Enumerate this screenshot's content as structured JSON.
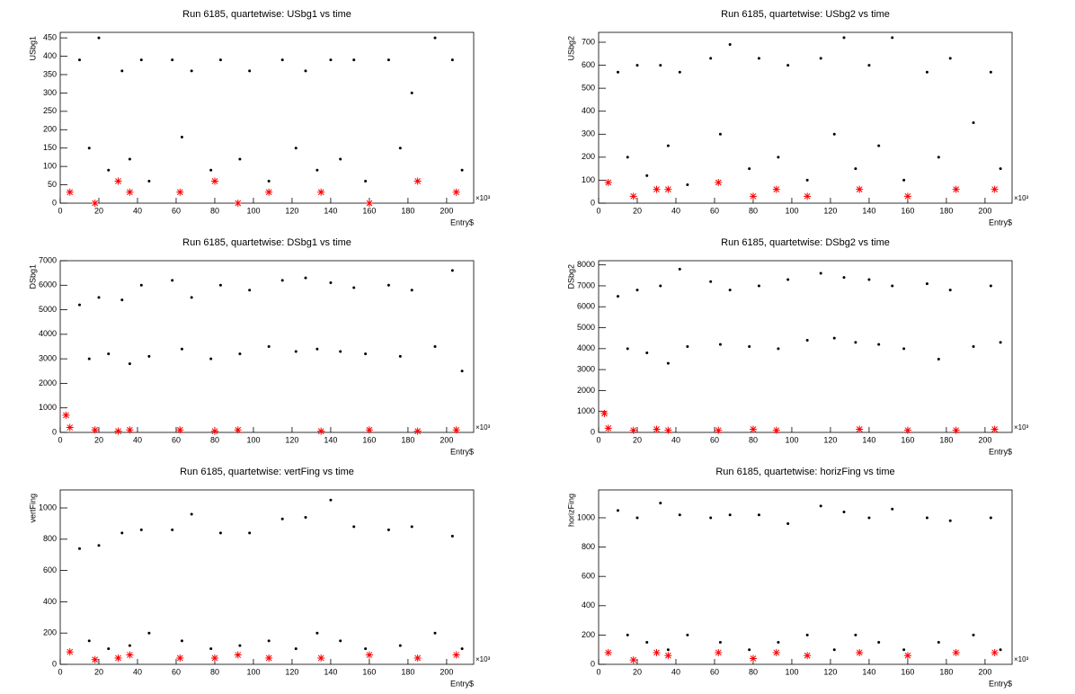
{
  "chart_data": [
    {
      "type": "scatter",
      "title": "Run 6185, quartetwise: USbg1 vs time",
      "y_label": "USbg1",
      "x_label": "Entry$",
      "x_exponent": "×10³",
      "xlim": [
        0,
        214
      ],
      "xticks": [
        0,
        20,
        40,
        60,
        80,
        100,
        120,
        140,
        160,
        180,
        200
      ],
      "ylim": [
        0,
        465
      ],
      "yticks": [
        0,
        50,
        100,
        150,
        200,
        250,
        300,
        350,
        400,
        450
      ],
      "series": [
        {
          "color": "#000000",
          "marker": "dot",
          "x": [
            10,
            15,
            20,
            25,
            32,
            36,
            42,
            46,
            58,
            63,
            68,
            78,
            83,
            93,
            98,
            108,
            115,
            122,
            127,
            133,
            140,
            145,
            152,
            158,
            170,
            176,
            182,
            194,
            203,
            208
          ],
          "values": [
            390,
            150,
            450,
            90,
            360,
            120,
            390,
            60,
            390,
            180,
            360,
            90,
            390,
            120,
            360,
            60,
            390,
            150,
            360,
            90,
            390,
            120,
            390,
            60,
            390,
            150,
            300,
            450,
            390,
            90
          ]
        },
        {
          "color": "#ff0000",
          "marker": "star",
          "x": [
            5,
            18,
            30,
            36,
            62,
            80,
            92,
            108,
            135,
            160,
            185,
            205
          ],
          "values": [
            30,
            0,
            60,
            30,
            30,
            60,
            0,
            30,
            30,
            0,
            60,
            30
          ]
        }
      ]
    },
    {
      "type": "scatter",
      "title": "Run 6185, quartetwise: USbg2 vs time",
      "y_label": "USbg2",
      "x_label": "Entry$",
      "x_exponent": "×10³",
      "xlim": [
        0,
        214
      ],
      "xticks": [
        0,
        20,
        40,
        60,
        80,
        100,
        120,
        140,
        160,
        180,
        200
      ],
      "ylim": [
        0,
        743
      ],
      "yticks": [
        0,
        100,
        200,
        300,
        400,
        500,
        600,
        700
      ],
      "series": [
        {
          "color": "#000000",
          "marker": "dot",
          "x": [
            10,
            15,
            20,
            25,
            32,
            36,
            42,
            46,
            58,
            63,
            68,
            78,
            83,
            93,
            98,
            108,
            115,
            122,
            127,
            133,
            140,
            145,
            152,
            158,
            170,
            176,
            182,
            194,
            203,
            208
          ],
          "values": [
            570,
            200,
            600,
            120,
            600,
            250,
            570,
            80,
            630,
            300,
            690,
            150,
            630,
            200,
            600,
            100,
            630,
            300,
            720,
            150,
            600,
            250,
            720,
            100,
            570,
            200,
            630,
            350,
            570,
            150
          ]
        },
        {
          "color": "#ff0000",
          "marker": "star",
          "x": [
            5,
            18,
            30,
            36,
            62,
            80,
            92,
            108,
            135,
            160,
            185,
            205
          ],
          "values": [
            90,
            30,
            60,
            60,
            90,
            30,
            60,
            30,
            60,
            30,
            60,
            60
          ]
        }
      ]
    },
    {
      "type": "scatter",
      "title": "Run 6185, quartetwise: DSbg1 vs time",
      "y_label": "DSbg1",
      "x_label": "Entry$",
      "x_exponent": "×10³",
      "xlim": [
        0,
        214
      ],
      "xticks": [
        0,
        20,
        40,
        60,
        80,
        100,
        120,
        140,
        160,
        180,
        200
      ],
      "ylim": [
        0,
        7000
      ],
      "yticks": [
        0,
        1000,
        2000,
        3000,
        4000,
        5000,
        6000,
        7000
      ],
      "series": [
        {
          "color": "#000000",
          "marker": "dot",
          "x": [
            10,
            15,
            20,
            25,
            32,
            36,
            42,
            46,
            58,
            63,
            68,
            78,
            83,
            93,
            98,
            108,
            115,
            122,
            127,
            133,
            140,
            145,
            152,
            158,
            170,
            176,
            182,
            194,
            203,
            208
          ],
          "values": [
            5200,
            3000,
            5500,
            3200,
            5400,
            2800,
            6000,
            3100,
            6200,
            3400,
            5500,
            3000,
            6000,
            3200,
            5800,
            3500,
            6200,
            3300,
            6300,
            3400,
            6100,
            3300,
            5900,
            3200,
            6000,
            3100,
            5800,
            3500,
            6600,
            2500
          ]
        },
        {
          "color": "#ff0000",
          "marker": "star",
          "x": [
            3,
            5,
            18,
            30,
            36,
            62,
            80,
            92,
            135,
            160,
            185,
            205
          ],
          "values": [
            700,
            200,
            100,
            50,
            100,
            100,
            50,
            100,
            50,
            100,
            50,
            100
          ]
        }
      ]
    },
    {
      "type": "scatter",
      "title": "Run 6185, quartetwise: DSbg2 vs time",
      "y_label": "DSbg2",
      "x_label": "Entry$",
      "x_exponent": "×10³",
      "xlim": [
        0,
        214
      ],
      "xticks": [
        0,
        20,
        40,
        60,
        80,
        100,
        120,
        140,
        160,
        180,
        200
      ],
      "ylim": [
        0,
        8200
      ],
      "yticks": [
        0,
        1000,
        2000,
        3000,
        4000,
        5000,
        6000,
        7000,
        8000
      ],
      "series": [
        {
          "color": "#000000",
          "marker": "dot",
          "x": [
            10,
            15,
            20,
            25,
            32,
            36,
            42,
            46,
            58,
            63,
            68,
            78,
            83,
            93,
            98,
            108,
            115,
            122,
            127,
            133,
            140,
            145,
            152,
            158,
            170,
            176,
            182,
            194,
            203,
            208
          ],
          "values": [
            6500,
            4000,
            6800,
            3800,
            7000,
            3300,
            7800,
            4100,
            7200,
            4200,
            6800,
            4100,
            7000,
            4000,
            7300,
            4400,
            7600,
            4500,
            7400,
            4300,
            7300,
            4200,
            7000,
            4000,
            7100,
            3500,
            6800,
            4100,
            7000,
            4300
          ]
        },
        {
          "color": "#ff0000",
          "marker": "star",
          "x": [
            3,
            5,
            18,
            30,
            36,
            62,
            80,
            92,
            135,
            160,
            185,
            205
          ],
          "values": [
            900,
            200,
            100,
            150,
            100,
            100,
            150,
            100,
            150,
            100,
            100,
            150
          ]
        }
      ]
    },
    {
      "type": "scatter",
      "title": "Run 6185, quartetwise: vertFing vs time",
      "y_label": "vertFing",
      "x_label": "Entry$",
      "x_exponent": "×10³",
      "xlim": [
        0,
        214
      ],
      "xticks": [
        0,
        20,
        40,
        60,
        80,
        100,
        120,
        140,
        160,
        180,
        200
      ],
      "ylim": [
        0,
        1115
      ],
      "yticks": [
        0,
        200,
        400,
        600,
        800,
        1000
      ],
      "series": [
        {
          "color": "#000000",
          "marker": "dot",
          "x": [
            10,
            15,
            20,
            25,
            32,
            36,
            42,
            46,
            58,
            63,
            68,
            78,
            83,
            93,
            98,
            108,
            115,
            122,
            127,
            133,
            140,
            145,
            152,
            158,
            170,
            176,
            182,
            194,
            203,
            208
          ],
          "values": [
            740,
            150,
            760,
            100,
            840,
            120,
            860,
            200,
            860,
            150,
            960,
            100,
            840,
            120,
            840,
            150,
            930,
            100,
            940,
            200,
            1050,
            150,
            880,
            100,
            860,
            120,
            880,
            200,
            820,
            100
          ]
        },
        {
          "color": "#ff0000",
          "marker": "star",
          "x": [
            5,
            18,
            30,
            36,
            62,
            80,
            92,
            108,
            135,
            160,
            185,
            205
          ],
          "values": [
            80,
            30,
            40,
            60,
            40,
            40,
            60,
            40,
            40,
            60,
            40,
            60
          ]
        }
      ]
    },
    {
      "type": "scatter",
      "title": "Run 6185, quartetwise: horizFing vs time",
      "y_label": "horizFing",
      "x_label": "Entry$",
      "x_exponent": "×10³",
      "xlim": [
        0,
        214
      ],
      "xticks": [
        0,
        20,
        40,
        60,
        80,
        100,
        120,
        140,
        160,
        180,
        200
      ],
      "ylim": [
        0,
        1190
      ],
      "yticks": [
        0,
        200,
        400,
        600,
        800,
        1000
      ],
      "series": [
        {
          "color": "#000000",
          "marker": "dot",
          "x": [
            10,
            15,
            20,
            25,
            32,
            36,
            42,
            46,
            58,
            63,
            68,
            78,
            83,
            93,
            98,
            108,
            115,
            122,
            127,
            133,
            140,
            145,
            152,
            158,
            170,
            176,
            182,
            194,
            203,
            208
          ],
          "values": [
            1050,
            200,
            1000,
            150,
            1100,
            100,
            1020,
            200,
            1000,
            150,
            1020,
            100,
            1020,
            150,
            960,
            200,
            1080,
            100,
            1040,
            200,
            1000,
            150,
            1060,
            100,
            1000,
            150,
            980,
            200,
            1000,
            100
          ]
        },
        {
          "color": "#ff0000",
          "marker": "star",
          "x": [
            5,
            18,
            30,
            36,
            62,
            80,
            92,
            108,
            135,
            160,
            185,
            205
          ],
          "values": [
            80,
            30,
            80,
            60,
            80,
            40,
            80,
            60,
            80,
            60,
            80,
            80
          ]
        }
      ]
    }
  ]
}
